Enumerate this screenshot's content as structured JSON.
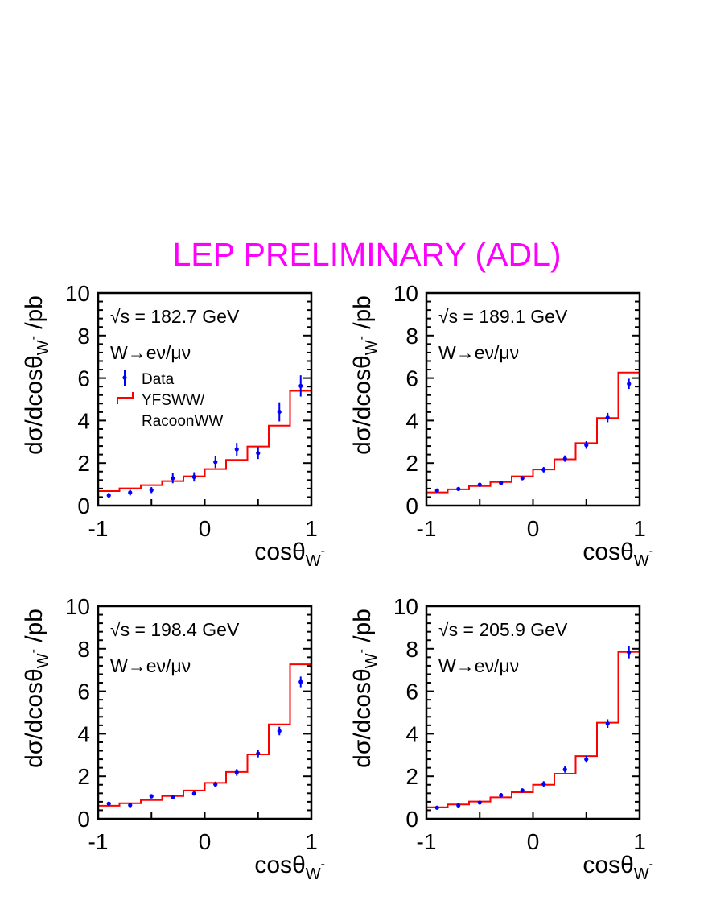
{
  "title": "LEP PRELIMINARY (ADL)",
  "colors": {
    "title": "#ff00ff",
    "data": "#0000ff",
    "mc": "#ff0000",
    "axes": "#000000"
  },
  "legend": {
    "data_label": "Data",
    "mc_label_line1": "YFSWW/",
    "mc_label_line2": "RacoonWW",
    "placement": "upper-left (first panel only)"
  },
  "chart_data": [
    {
      "type": "histogram+errorbar",
      "energy_label": "√s = 182.7 GeV",
      "channel_label": "W→eν/μν",
      "xlabel": "cosθ",
      "xlabel_sub": "W",
      "xlabel_sup": "-",
      "ylabel": "dσ/dcosθ",
      "ylabel_sub": "W",
      "ylabel_sup": "-",
      "ylabel_unit": " /pb",
      "xlim": [
        -1,
        1
      ],
      "ylim": [
        0,
        10
      ],
      "xticks": [
        "-1",
        "0",
        "1"
      ],
      "yticks": [
        "0",
        "2",
        "4",
        "6",
        "8",
        "10"
      ],
      "bin_edges": [
        -1,
        -0.8,
        -0.6,
        -0.4,
        -0.2,
        0,
        0.2,
        0.4,
        0.6,
        0.8,
        1
      ],
      "mc": [
        0.68,
        0.81,
        0.96,
        1.15,
        1.38,
        1.72,
        2.15,
        2.78,
        3.76,
        5.4
      ],
      "data": [
        0.48,
        0.61,
        0.73,
        1.29,
        1.35,
        2.05,
        2.65,
        2.47,
        4.41,
        5.63
      ],
      "data_err": [
        0.12,
        0.13,
        0.14,
        0.24,
        0.22,
        0.28,
        0.3,
        0.28,
        0.45,
        0.5
      ],
      "show_legend": true
    },
    {
      "type": "histogram+errorbar",
      "energy_label": "√s = 189.1 GeV",
      "channel_label": "W→eν/μν",
      "xlabel": "cosθ",
      "xlabel_sub": "W",
      "xlabel_sup": "-",
      "ylabel": "dσ/dcosθ",
      "ylabel_sub": "W",
      "ylabel_sup": "-",
      "ylabel_unit": " /pb",
      "xlim": [
        -1,
        1
      ],
      "ylim": [
        0,
        10
      ],
      "xticks": [
        "-1",
        "0",
        "1"
      ],
      "yticks": [
        "0",
        "2",
        "4",
        "6",
        "8",
        "10"
      ],
      "bin_edges": [
        -1,
        -0.8,
        -0.6,
        -0.4,
        -0.2,
        0,
        0.2,
        0.4,
        0.6,
        0.8,
        1
      ],
      "mc": [
        0.62,
        0.76,
        0.92,
        1.11,
        1.38,
        1.7,
        2.18,
        2.94,
        4.12,
        6.26
      ],
      "data": [
        0.71,
        0.78,
        0.98,
        1.06,
        1.29,
        1.69,
        2.21,
        2.85,
        4.14,
        5.73
      ],
      "data_err": [
        0.07,
        0.07,
        0.09,
        0.1,
        0.1,
        0.13,
        0.15,
        0.18,
        0.22,
        0.24
      ],
      "show_legend": false
    },
    {
      "type": "histogram+errorbar",
      "energy_label": "√s = 198.4 GeV",
      "channel_label": "W→eν/μν",
      "xlabel": "cosθ",
      "xlabel_sub": "W",
      "xlabel_sup": "-",
      "ylabel": "dσ/dcosθ",
      "ylabel_sub": "W",
      "ylabel_sup": "-",
      "ylabel_unit": " /pb",
      "xlim": [
        -1,
        1
      ],
      "ylim": [
        0,
        10
      ],
      "xticks": [
        "-1",
        "0",
        "1"
      ],
      "yticks": [
        "0",
        "2",
        "4",
        "6",
        "8",
        "10"
      ],
      "bin_edges": [
        -1,
        -0.8,
        -0.6,
        -0.4,
        -0.2,
        0,
        0.2,
        0.4,
        0.6,
        0.8,
        1
      ],
      "mc": [
        0.61,
        0.73,
        0.88,
        1.07,
        1.33,
        1.69,
        2.2,
        3.03,
        4.44,
        7.27
      ],
      "data": [
        0.71,
        0.64,
        1.06,
        1.01,
        1.19,
        1.62,
        2.18,
        3.07,
        4.13,
        6.44
      ],
      "data_err": [
        0.08,
        0.07,
        0.1,
        0.1,
        0.1,
        0.13,
        0.16,
        0.18,
        0.2,
        0.25
      ],
      "show_legend": false
    },
    {
      "type": "histogram+errorbar",
      "energy_label": "√s = 205.9 GeV",
      "channel_label": "W→eν/μν",
      "xlabel": "cosθ",
      "xlabel_sub": "W",
      "xlabel_sup": "-",
      "ylabel": "dσ/dcosθ",
      "ylabel_sub": "W",
      "ylabel_sup": "-",
      "ylabel_unit": " /pb",
      "xlim": [
        -1,
        1
      ],
      "ylim": [
        0,
        10
      ],
      "xticks": [
        "-1",
        "0",
        "1"
      ],
      "yticks": [
        "0",
        "2",
        "4",
        "6",
        "8",
        "10"
      ],
      "bin_edges": [
        -1,
        -0.8,
        -0.6,
        -0.4,
        -0.2,
        0,
        0.2,
        0.4,
        0.6,
        0.8,
        1
      ],
      "mc": [
        0.54,
        0.67,
        0.81,
        1.01,
        1.25,
        1.6,
        2.12,
        2.95,
        4.52,
        7.85
      ],
      "data": [
        0.52,
        0.63,
        0.76,
        1.11,
        1.33,
        1.64,
        2.32,
        2.8,
        4.48,
        7.83
      ],
      "data_err": [
        0.06,
        0.06,
        0.07,
        0.1,
        0.1,
        0.13,
        0.15,
        0.16,
        0.2,
        0.28
      ],
      "show_legend": false
    }
  ]
}
